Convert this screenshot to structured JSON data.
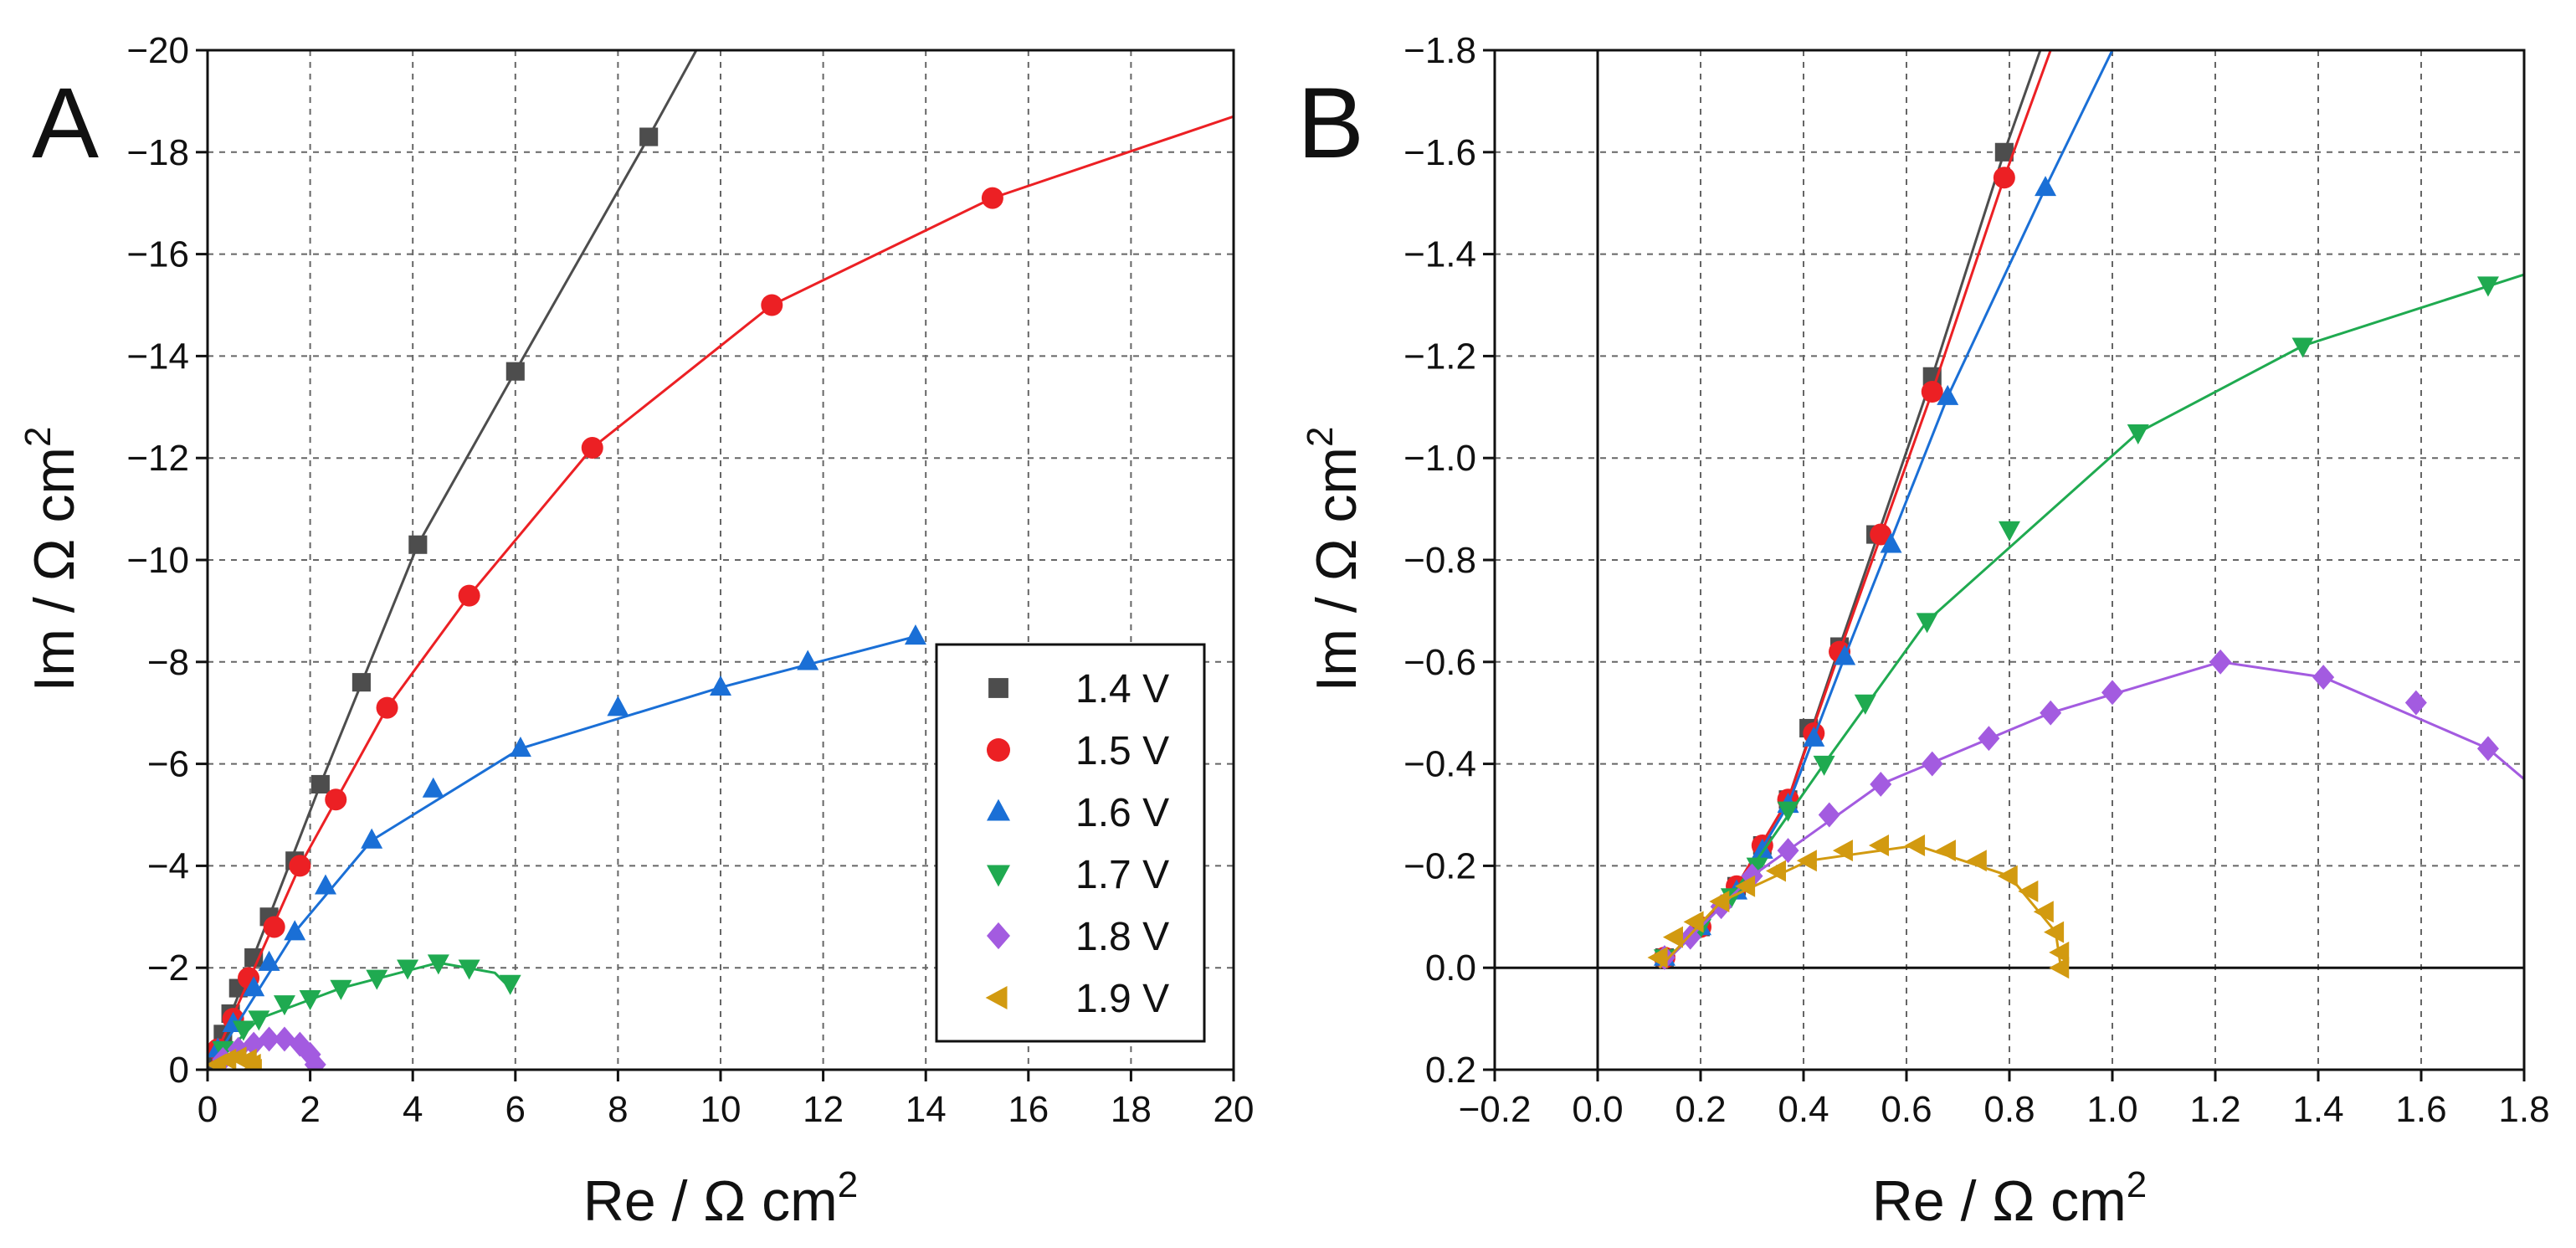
{
  "chart_data": [
    {
      "panel": "A",
      "type": "scatter",
      "xlabel": "Re / Ω cm",
      "ylabel": "Im / Ω cm",
      "unit_exponent": "2",
      "xlim": [
        0,
        20
      ],
      "ylim": [
        0,
        -20
      ],
      "grid": true,
      "xticks": [
        0,
        2,
        4,
        6,
        8,
        10,
        12,
        14,
        16,
        18,
        20
      ],
      "yticks": [
        0,
        -2,
        -4,
        -6,
        -8,
        -10,
        -12,
        -14,
        -16,
        -18,
        -20
      ],
      "xtick_labels": [
        "0",
        "2",
        "4",
        "6",
        "8",
        "10",
        "12",
        "14",
        "16",
        "18",
        "20"
      ],
      "ytick_labels": [
        "0",
        "−2",
        "−4",
        "−6",
        "−8",
        "−10",
        "−12",
        "−14",
        "−16",
        "−18",
        "−20"
      ],
      "legend": {
        "placement": "lower-right"
      },
      "series": [
        {
          "name": "1.4 V",
          "marker": "square",
          "color": "#4d4d4d",
          "points": [
            [
              0.05,
              -0.05
            ],
            [
              0.15,
              -0.3
            ],
            [
              0.3,
              -0.7
            ],
            [
              0.45,
              -1.1
            ],
            [
              0.6,
              -1.6
            ],
            [
              0.9,
              -2.2
            ],
            [
              1.2,
              -3.0
            ],
            [
              1.7,
              -4.1
            ],
            [
              2.2,
              -5.6
            ],
            [
              3.0,
              -7.6
            ],
            [
              4.1,
              -10.3
            ],
            [
              6.0,
              -13.7
            ],
            [
              8.6,
              -18.3
            ]
          ],
          "line": [
            [
              0.05,
              -0.05
            ],
            [
              1.2,
              -3.0
            ],
            [
              2.2,
              -5.6
            ],
            [
              4.1,
              -10.3
            ],
            [
              6.0,
              -13.7
            ],
            [
              8.6,
              -18.3
            ],
            [
              9.8,
              -20.5
            ]
          ]
        },
        {
          "name": "1.5 V",
          "marker": "circle",
          "color": "#ec2024",
          "points": [
            [
              0.2,
              -0.4
            ],
            [
              0.5,
              -1.0
            ],
            [
              0.8,
              -1.8
            ],
            [
              1.3,
              -2.8
            ],
            [
              1.8,
              -4.0
            ],
            [
              2.5,
              -5.3
            ],
            [
              3.5,
              -7.1
            ],
            [
              5.1,
              -9.3
            ],
            [
              7.5,
              -12.2
            ],
            [
              11.0,
              -15.0
            ],
            [
              15.3,
              -17.1
            ]
          ],
          "line": [
            [
              0.05,
              -0.05
            ],
            [
              1.8,
              -4.0
            ],
            [
              3.5,
              -7.1
            ],
            [
              5.1,
              -9.3
            ],
            [
              7.5,
              -12.2
            ],
            [
              11.0,
              -15.0
            ],
            [
              15.3,
              -17.1
            ],
            [
              20.0,
              -18.7
            ]
          ]
        },
        {
          "name": "1.6 V",
          "marker": "triangle-up",
          "color": "#1a6fd6",
          "points": [
            [
              0.2,
              -0.4
            ],
            [
              0.5,
              -0.9
            ],
            [
              0.9,
              -1.6
            ],
            [
              1.2,
              -2.1
            ],
            [
              1.7,
              -2.7
            ],
            [
              2.3,
              -3.6
            ],
            [
              3.2,
              -4.5
            ],
            [
              4.4,
              -5.5
            ],
            [
              6.1,
              -6.3
            ],
            [
              8.0,
              -7.1
            ],
            [
              10.0,
              -7.5
            ],
            [
              11.7,
              -8.0
            ],
            [
              13.8,
              -8.5
            ]
          ],
          "line": [
            [
              0.05,
              -0.05
            ],
            [
              1.7,
              -2.7
            ],
            [
              3.2,
              -4.5
            ],
            [
              6.1,
              -6.3
            ],
            [
              10.0,
              -7.5
            ],
            [
              13.8,
              -8.5
            ]
          ]
        },
        {
          "name": "1.7 V",
          "marker": "triangle-down",
          "color": "#1faa50",
          "points": [
            [
              0.3,
              -0.4
            ],
            [
              0.7,
              -0.8
            ],
            [
              1.0,
              -1.0
            ],
            [
              1.5,
              -1.3
            ],
            [
              2.0,
              -1.4
            ],
            [
              2.6,
              -1.6
            ],
            [
              3.3,
              -1.8
            ],
            [
              3.9,
              -2.0
            ],
            [
              4.5,
              -2.1
            ],
            [
              5.1,
              -2.0
            ],
            [
              5.9,
              -1.7
            ]
          ],
          "line": [
            [
              0.1,
              -0.05
            ],
            [
              1.0,
              -1.0
            ],
            [
              2.6,
              -1.6
            ],
            [
              4.5,
              -2.1
            ],
            [
              5.6,
              -1.9
            ],
            [
              5.9,
              -1.6
            ]
          ]
        },
        {
          "name": "1.8 V",
          "marker": "diamond",
          "color": "#a35be0",
          "points": [
            [
              0.3,
              -0.2
            ],
            [
              0.6,
              -0.4
            ],
            [
              0.9,
              -0.5
            ],
            [
              1.2,
              -0.6
            ],
            [
              1.5,
              -0.6
            ],
            [
              1.8,
              -0.5
            ],
            [
              2.0,
              -0.3
            ],
            [
              2.1,
              -0.1
            ]
          ],
          "line": [
            [
              0.12,
              -0.02
            ],
            [
              0.6,
              -0.4
            ],
            [
              1.2,
              -0.6
            ],
            [
              1.8,
              -0.5
            ],
            [
              2.1,
              -0.2
            ],
            [
              2.1,
              0.0
            ]
          ]
        },
        {
          "name": "1.9 V",
          "marker": "triangle-left",
          "color": "#d29a10",
          "points": [
            [
              0.2,
              -0.1
            ],
            [
              0.4,
              -0.2
            ],
            [
              0.6,
              -0.24
            ],
            [
              0.8,
              -0.2
            ],
            [
              0.88,
              -0.1
            ],
            [
              0.9,
              0.0
            ]
          ],
          "line": [
            [
              0.12,
              0.0
            ],
            [
              0.6,
              -0.24
            ],
            [
              0.9,
              0.0
            ]
          ]
        }
      ]
    },
    {
      "panel": "B",
      "type": "scatter",
      "xlabel": "Re / Ω cm",
      "ylabel": "Im / Ω cm",
      "unit_exponent": "2",
      "xlim": [
        -0.2,
        1.8
      ],
      "ylim": [
        0.2,
        -1.8
      ],
      "grid": true,
      "xticks": [
        -0.2,
        0.0,
        0.2,
        0.4,
        0.6,
        0.8,
        1.0,
        1.2,
        1.4,
        1.6,
        1.8
      ],
      "yticks": [
        0.2,
        0.0,
        -0.2,
        -0.4,
        -0.6,
        -0.8,
        -1.0,
        -1.2,
        -1.4,
        -1.6,
        -1.8
      ],
      "xtick_labels": [
        "−0.2",
        "0.0",
        "0.2",
        "0.4",
        "0.6",
        "0.8",
        "1.0",
        "1.2",
        "1.4",
        "1.6",
        "1.8"
      ],
      "ytick_labels": [
        "0.2",
        "0.0",
        "−0.2",
        "−0.4",
        "−0.6",
        "−0.8",
        "−1.0",
        "−1.2",
        "−1.4",
        "−1.6",
        "−1.8"
      ],
      "series": [
        {
          "name": "1.4 V",
          "marker": "square",
          "color": "#4d4d4d",
          "points": [
            [
              0.13,
              -0.02
            ],
            [
              0.2,
              -0.08
            ],
            [
              0.27,
              -0.16
            ],
            [
              0.32,
              -0.24
            ],
            [
              0.37,
              -0.33
            ],
            [
              0.41,
              -0.47
            ],
            [
              0.47,
              -0.63
            ],
            [
              0.54,
              -0.85
            ],
            [
              0.65,
              -1.16
            ],
            [
              0.79,
              -1.6
            ]
          ],
          "line": [
            [
              0.12,
              0.0
            ],
            [
              0.27,
              -0.16
            ],
            [
              0.37,
              -0.33
            ],
            [
              0.47,
              -0.63
            ],
            [
              0.65,
              -1.16
            ],
            [
              0.79,
              -1.6
            ],
            [
              0.86,
              -1.8
            ]
          ]
        },
        {
          "name": "1.5 V",
          "marker": "circle",
          "color": "#ec2024",
          "points": [
            [
              0.13,
              -0.02
            ],
            [
              0.2,
              -0.08
            ],
            [
              0.27,
              -0.16
            ],
            [
              0.32,
              -0.24
            ],
            [
              0.37,
              -0.33
            ],
            [
              0.42,
              -0.46
            ],
            [
              0.47,
              -0.62
            ],
            [
              0.55,
              -0.85
            ],
            [
              0.65,
              -1.13
            ],
            [
              0.79,
              -1.55
            ]
          ],
          "line": [
            [
              0.12,
              0.0
            ],
            [
              0.27,
              -0.16
            ],
            [
              0.37,
              -0.33
            ],
            [
              0.47,
              -0.62
            ],
            [
              0.65,
              -1.13
            ],
            [
              0.79,
              -1.55
            ],
            [
              0.88,
              -1.8
            ]
          ]
        },
        {
          "name": "1.6 V",
          "marker": "triangle-up",
          "color": "#1a6fd6",
          "points": [
            [
              0.13,
              -0.02
            ],
            [
              0.2,
              -0.08
            ],
            [
              0.27,
              -0.15
            ],
            [
              0.32,
              -0.23
            ],
            [
              0.37,
              -0.32
            ],
            [
              0.42,
              -0.45
            ],
            [
              0.48,
              -0.61
            ],
            [
              0.57,
              -0.83
            ],
            [
              0.68,
              -1.12
            ],
            [
              0.87,
              -1.53
            ]
          ],
          "line": [
            [
              0.12,
              0.0
            ],
            [
              0.27,
              -0.15
            ],
            [
              0.37,
              -0.32
            ],
            [
              0.48,
              -0.61
            ],
            [
              0.68,
              -1.12
            ],
            [
              0.87,
              -1.53
            ],
            [
              1.0,
              -1.8
            ]
          ]
        },
        {
          "name": "1.7 V",
          "marker": "triangle-down",
          "color": "#1faa50",
          "points": [
            [
              0.13,
              -0.02
            ],
            [
              0.2,
              -0.08
            ],
            [
              0.26,
              -0.14
            ],
            [
              0.31,
              -0.2
            ],
            [
              0.37,
              -0.31
            ],
            [
              0.44,
              -0.4
            ],
            [
              0.52,
              -0.52
            ],
            [
              0.64,
              -0.68
            ],
            [
              0.8,
              -0.86
            ],
            [
              1.05,
              -1.05
            ],
            [
              1.37,
              -1.22
            ],
            [
              1.73,
              -1.34
            ]
          ],
          "line": [
            [
              0.12,
              0.0
            ],
            [
              0.26,
              -0.14
            ],
            [
              0.44,
              -0.4
            ],
            [
              0.64,
              -0.68
            ],
            [
              1.05,
              -1.05
            ],
            [
              1.37,
              -1.22
            ],
            [
              1.8,
              -1.36
            ]
          ]
        },
        {
          "name": "1.8 V",
          "marker": "diamond",
          "color": "#a35be0",
          "points": [
            [
              0.13,
              -0.02
            ],
            [
              0.18,
              -0.06
            ],
            [
              0.24,
              -0.12
            ],
            [
              0.3,
              -0.18
            ],
            [
              0.37,
              -0.23
            ],
            [
              0.45,
              -0.3
            ],
            [
              0.55,
              -0.36
            ],
            [
              0.65,
              -0.4
            ],
            [
              0.76,
              -0.45
            ],
            [
              0.88,
              -0.5
            ],
            [
              1.0,
              -0.54
            ],
            [
              1.21,
              -0.6
            ],
            [
              1.41,
              -0.57
            ],
            [
              1.59,
              -0.52
            ],
            [
              1.73,
              -0.43
            ]
          ],
          "line": [
            [
              0.12,
              0.0
            ],
            [
              0.3,
              -0.18
            ],
            [
              0.55,
              -0.36
            ],
            [
              0.88,
              -0.5
            ],
            [
              1.21,
              -0.6
            ],
            [
              1.41,
              -0.57
            ],
            [
              1.73,
              -0.43
            ],
            [
              1.8,
              -0.37
            ]
          ]
        },
        {
          "name": "1.9 V",
          "marker": "triangle-left",
          "color": "#d29a10",
          "points": [
            [
              0.12,
              -0.02
            ],
            [
              0.15,
              -0.06
            ],
            [
              0.19,
              -0.09
            ],
            [
              0.24,
              -0.13
            ],
            [
              0.29,
              -0.16
            ],
            [
              0.35,
              -0.19
            ],
            [
              0.41,
              -0.21
            ],
            [
              0.48,
              -0.23
            ],
            [
              0.55,
              -0.24
            ],
            [
              0.62,
              -0.24
            ],
            [
              0.68,
              -0.23
            ],
            [
              0.74,
              -0.21
            ],
            [
              0.8,
              -0.18
            ],
            [
              0.84,
              -0.15
            ],
            [
              0.87,
              -0.11
            ],
            [
              0.89,
              -0.07
            ],
            [
              0.9,
              -0.03
            ],
            [
              0.9,
              0.0
            ]
          ],
          "line": [
            [
              0.12,
              0.0
            ],
            [
              0.24,
              -0.13
            ],
            [
              0.41,
              -0.21
            ],
            [
              0.62,
              -0.24
            ],
            [
              0.8,
              -0.18
            ],
            [
              0.89,
              -0.07
            ],
            [
              0.9,
              0.0
            ]
          ]
        }
      ]
    }
  ]
}
